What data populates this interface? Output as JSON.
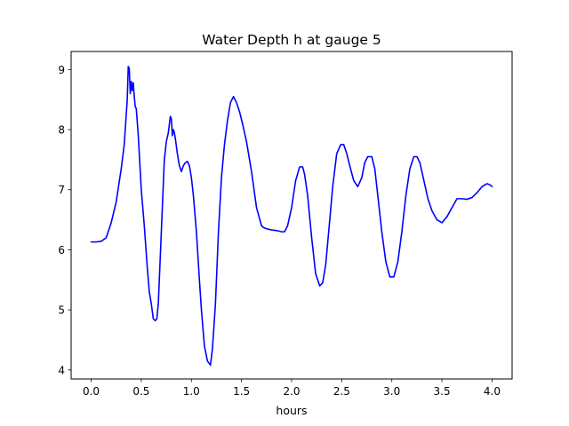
{
  "chart_data": {
    "type": "line",
    "title": "Water Depth h at gauge 5",
    "xlabel": "hours",
    "ylabel": "",
    "xlim": [
      -0.2,
      4.2
    ],
    "ylim": [
      3.85,
      9.3
    ],
    "grid": false,
    "x_ticks": [
      0.0,
      0.5,
      1.0,
      1.5,
      2.0,
      2.5,
      3.0,
      3.5,
      4.0
    ],
    "x_tick_labels": [
      "0.0",
      "0.5",
      "1.0",
      "1.5",
      "2.0",
      "2.5",
      "3.0",
      "3.5",
      "4.0"
    ],
    "y_ticks": [
      4,
      5,
      6,
      7,
      8,
      9
    ],
    "y_tick_labels": [
      "4",
      "5",
      "6",
      "7",
      "8",
      "9"
    ],
    "series": [
      {
        "color": "#0000ff",
        "x": [
          0.0,
          0.05,
          0.1,
          0.15,
          0.2,
          0.25,
          0.3,
          0.33,
          0.36,
          0.37,
          0.38,
          0.39,
          0.4,
          0.41,
          0.42,
          0.43,
          0.44,
          0.45,
          0.47,
          0.5,
          0.53,
          0.56,
          0.58,
          0.6,
          0.62,
          0.64,
          0.655,
          0.67,
          0.69,
          0.71,
          0.73,
          0.75,
          0.77,
          0.79,
          0.8,
          0.81,
          0.82,
          0.83,
          0.84,
          0.86,
          0.88,
          0.9,
          0.92,
          0.94,
          0.96,
          0.98,
          1.0,
          1.02,
          1.05,
          1.08,
          1.1,
          1.13,
          1.16,
          1.19,
          1.21,
          1.24,
          1.27,
          1.3,
          1.33,
          1.36,
          1.39,
          1.42,
          1.45,
          1.48,
          1.51,
          1.55,
          1.6,
          1.65,
          1.7,
          1.72,
          1.75,
          1.8,
          1.85,
          1.9,
          1.93,
          1.96,
          2.0,
          2.04,
          2.08,
          2.11,
          2.13,
          2.16,
          2.2,
          2.24,
          2.28,
          2.31,
          2.34,
          2.37,
          2.41,
          2.45,
          2.49,
          2.52,
          2.55,
          2.58,
          2.62,
          2.66,
          2.7,
          2.73,
          2.76,
          2.8,
          2.83,
          2.86,
          2.9,
          2.94,
          2.98,
          3.02,
          3.06,
          3.1,
          3.14,
          3.18,
          3.22,
          3.25,
          3.28,
          3.32,
          3.36,
          3.4,
          3.45,
          3.5,
          3.55,
          3.6,
          3.65,
          3.7,
          3.75,
          3.8,
          3.85,
          3.9,
          3.95,
          3.98,
          4.0
        ],
        "y": [
          6.13,
          6.13,
          6.14,
          6.2,
          6.45,
          6.8,
          7.35,
          7.75,
          8.5,
          9.05,
          9.02,
          8.6,
          8.8,
          8.65,
          8.78,
          8.55,
          8.38,
          8.35,
          7.9,
          7.0,
          6.4,
          5.7,
          5.3,
          5.1,
          4.85,
          4.82,
          4.85,
          5.1,
          5.9,
          6.7,
          7.5,
          7.8,
          7.95,
          8.22,
          8.18,
          7.9,
          8.0,
          7.95,
          7.85,
          7.6,
          7.4,
          7.3,
          7.4,
          7.45,
          7.47,
          7.4,
          7.2,
          6.9,
          6.3,
          5.5,
          5.0,
          4.4,
          4.15,
          4.08,
          4.35,
          5.1,
          6.3,
          7.2,
          7.75,
          8.15,
          8.45,
          8.55,
          8.45,
          8.3,
          8.1,
          7.8,
          7.3,
          6.7,
          6.4,
          6.37,
          6.35,
          6.33,
          6.32,
          6.3,
          6.3,
          6.4,
          6.7,
          7.15,
          7.38,
          7.38,
          7.25,
          6.9,
          6.2,
          5.6,
          5.4,
          5.45,
          5.75,
          6.3,
          7.05,
          7.6,
          7.75,
          7.75,
          7.6,
          7.4,
          7.15,
          7.05,
          7.2,
          7.45,
          7.55,
          7.55,
          7.35,
          6.9,
          6.3,
          5.8,
          5.55,
          5.55,
          5.8,
          6.3,
          6.9,
          7.35,
          7.55,
          7.55,
          7.45,
          7.15,
          6.85,
          6.65,
          6.5,
          6.45,
          6.55,
          6.7,
          6.85,
          6.85,
          6.84,
          6.87,
          6.95,
          7.05,
          7.1,
          7.08,
          7.05
        ]
      }
    ]
  }
}
